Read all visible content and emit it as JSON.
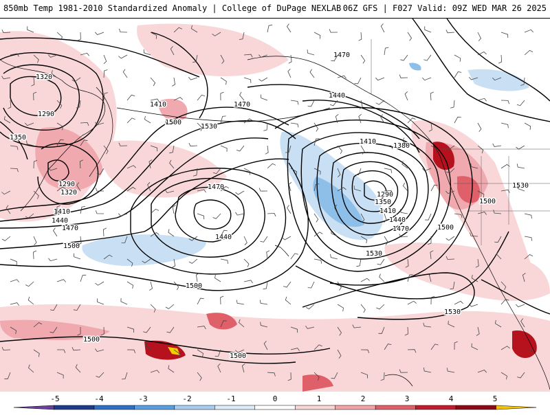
{
  "header": {
    "left_title": "850mb Temp 1981-2010 Standardized Anomaly | College of DuPage NEXLAB",
    "right_title": "06Z GFS | F027 Valid: 09Z WED MAR 26 2025"
  },
  "colorbar": {
    "ticks": [
      "-5",
      "-4",
      "-3",
      "-2",
      "-1",
      "0",
      "1",
      "2",
      "3",
      "4",
      "5"
    ],
    "colors": [
      "#6a3fa0",
      "#1f3c8a",
      "#2f6fc4",
      "#5a9ee0",
      "#a8cdf0",
      "#dcebf8",
      "#ffffff",
      "#f8d6d6",
      "#f0a6a6",
      "#e0606a",
      "#c01e2e",
      "#8c0a18",
      "#f5c400"
    ]
  },
  "anomaly_colors": {
    "light_red": "#f9d7d9",
    "mid_red": "#f0a9ae",
    "red": "#e0606a",
    "dark_red": "#b5121e",
    "light_blue": "#c8dff4",
    "blue": "#8ebfe8",
    "yellow": "#f5d000"
  },
  "contour_labels": [
    "1320",
    "1290",
    "1350",
    "1410",
    "1500",
    "1470",
    "1530",
    "1290",
    "1320",
    "1410",
    "1440",
    "1470",
    "1500",
    "1470",
    "1440",
    "1500",
    "1470",
    "1440",
    "1410",
    "1380",
    "1290",
    "1350",
    "1410",
    "1440",
    "1470",
    "1500",
    "1530",
    "1500",
    "1530",
    "1530",
    "1500",
    "1500"
  ]
}
